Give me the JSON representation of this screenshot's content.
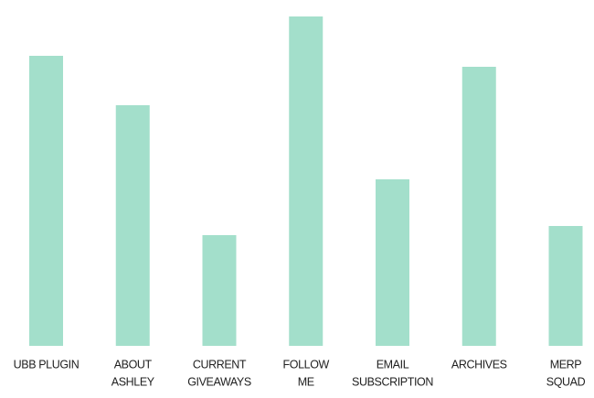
{
  "chart_data": {
    "type": "bar",
    "categories": [
      [
        "UBB PLUGIN"
      ],
      [
        "ABOUT",
        "ASHLEY"
      ],
      [
        "CURRENT",
        "GIVEAWAYS"
      ],
      [
        "FOLLOW",
        "ME"
      ],
      [
        "EMAIL",
        "SUBSCRIPTION"
      ],
      [
        "ARCHIVES"
      ],
      [
        "MERP",
        "SQUAD"
      ]
    ],
    "values": [
      317,
      263,
      121,
      360,
      182,
      305,
      131
    ],
    "color": "#a3dfcb"
  }
}
